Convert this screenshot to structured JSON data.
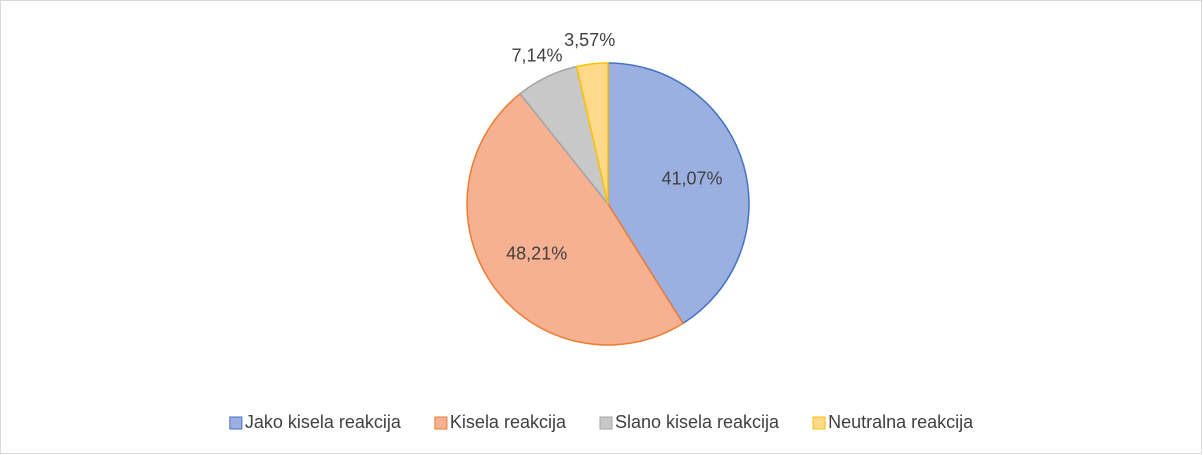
{
  "chart_data": {
    "type": "pie",
    "categories": [
      "Jako kisela reakcija",
      "Kisela reakcija",
      "Slano kisela reakcija",
      "Neutralna reakcija"
    ],
    "values": [
      41.07,
      48.21,
      7.14,
      3.57
    ],
    "value_labels": [
      "41,07%",
      "48,21%",
      "7,14%",
      "3,57%"
    ],
    "colors": [
      "#9bb0e0",
      "#f6b092",
      "#c8c8c8",
      "#ffd98a"
    ],
    "edge_colors": [
      "#4472c4",
      "#ed7d31",
      "#a5a5a5",
      "#ffc000"
    ],
    "legend": "bottom"
  }
}
